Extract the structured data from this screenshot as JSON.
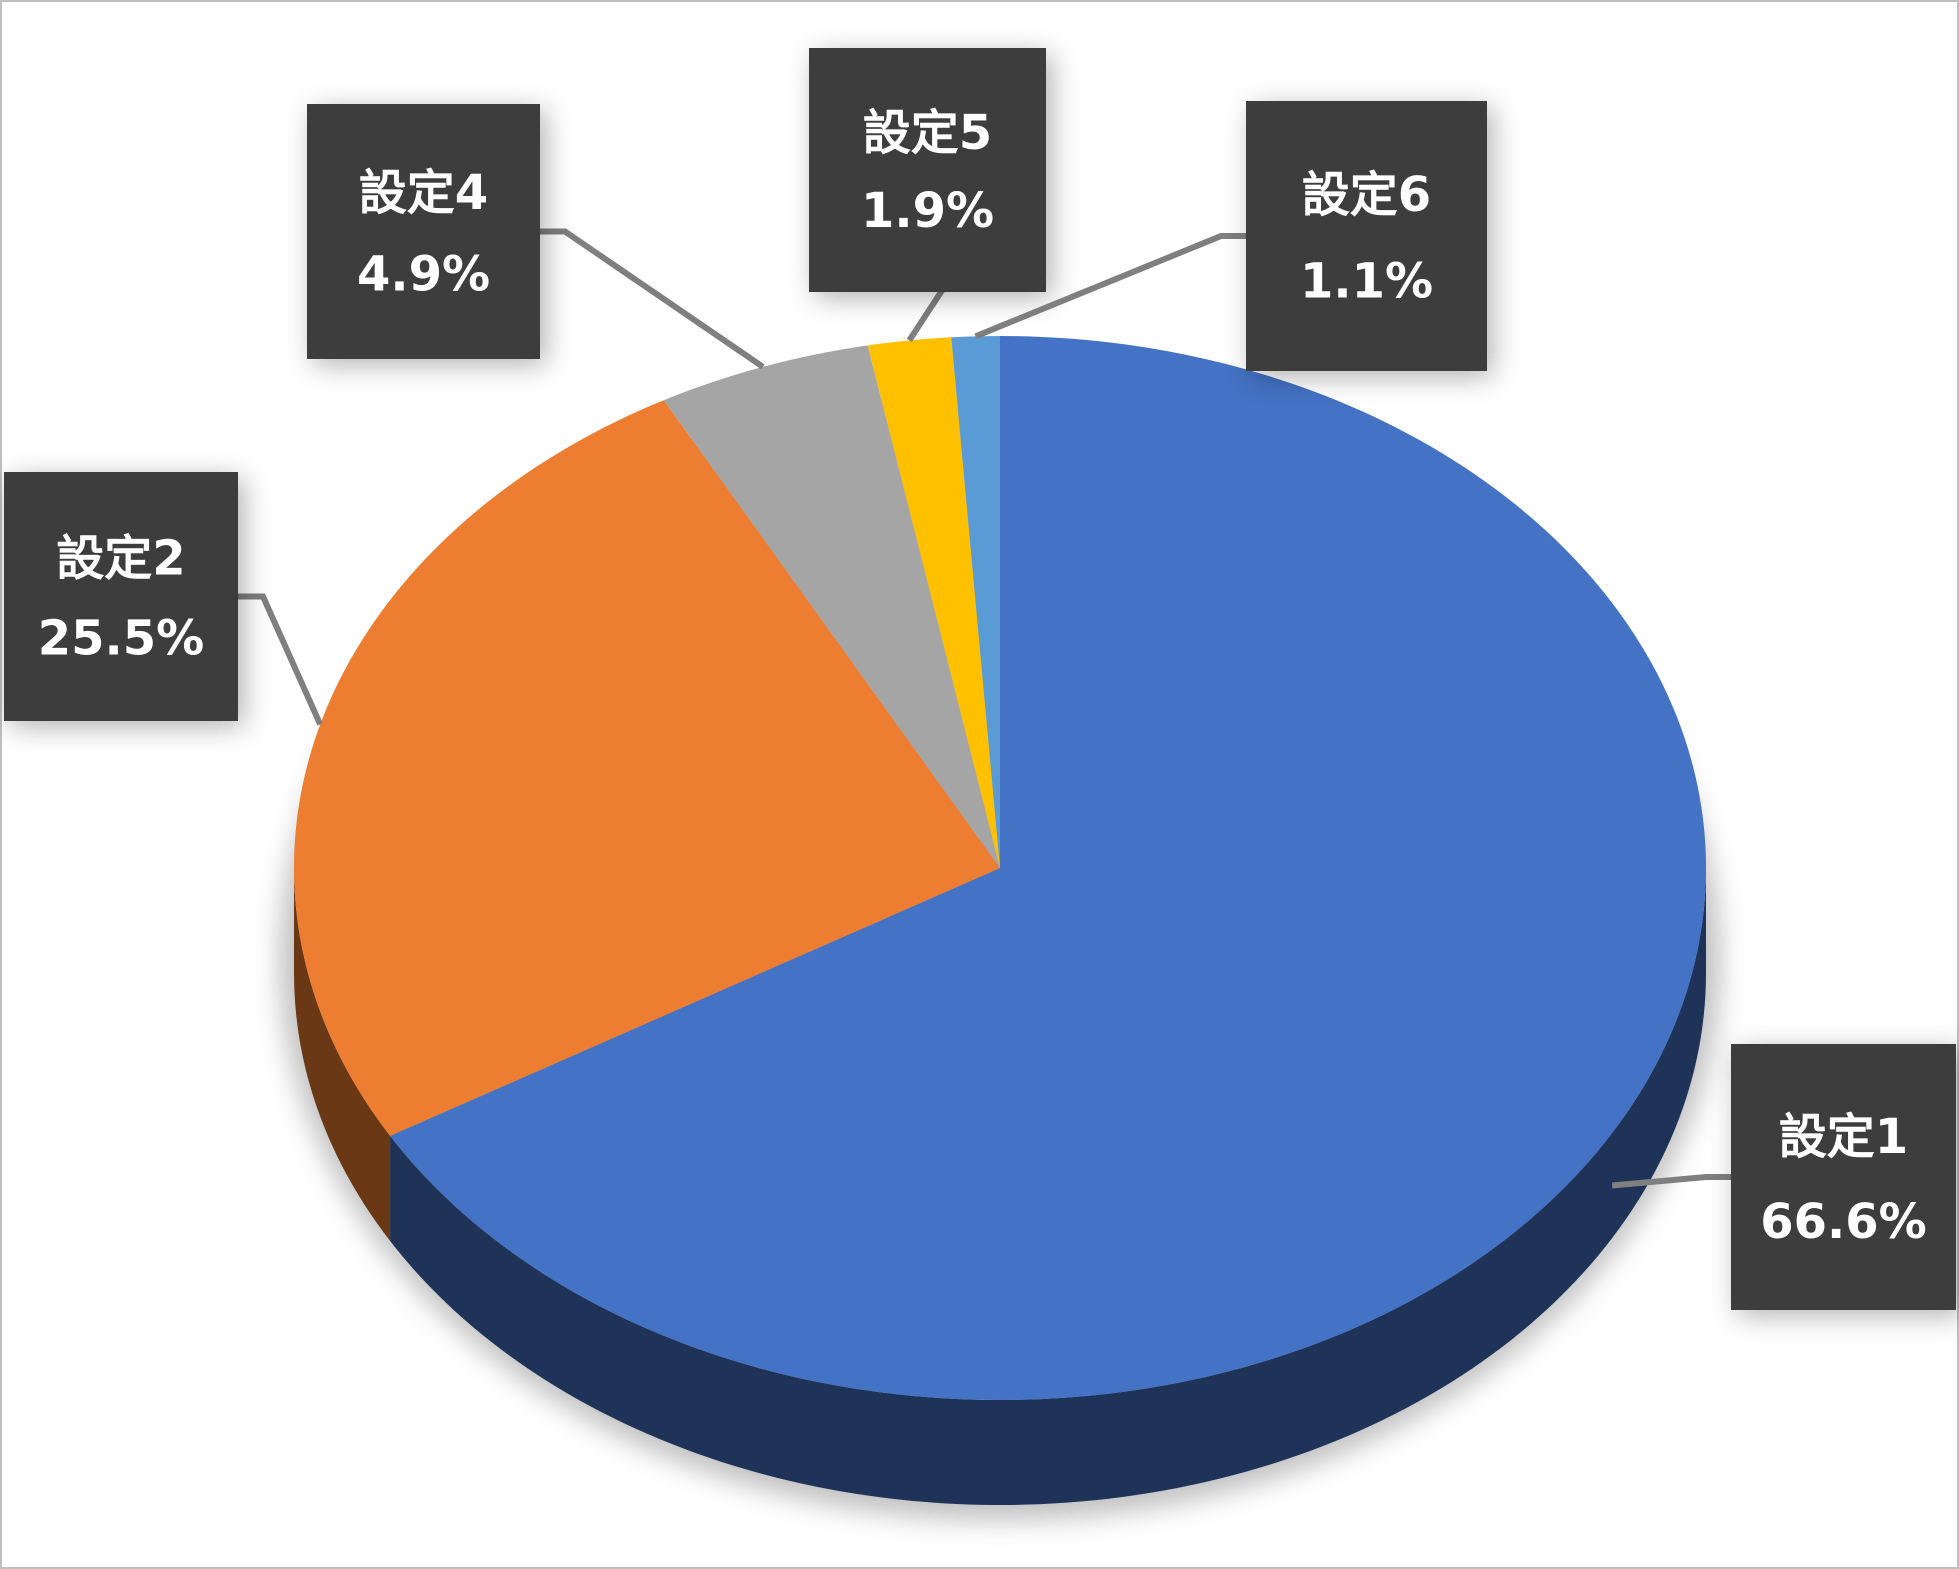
{
  "chart_data": {
    "type": "pie",
    "categories": [
      "設定1",
      "設定2",
      "設定4",
      "設定5",
      "設定6"
    ],
    "values": [
      66.6,
      25.5,
      4.9,
      1.9,
      1.1
    ],
    "value_labels": [
      "66.6%",
      "25.5%",
      "4.9%",
      "1.9%",
      "1.1%"
    ],
    "colors": [
      "#4472c4",
      "#ed7d31",
      "#a5a5a5",
      "#ffc000",
      "#5b9bd5"
    ]
  }
}
